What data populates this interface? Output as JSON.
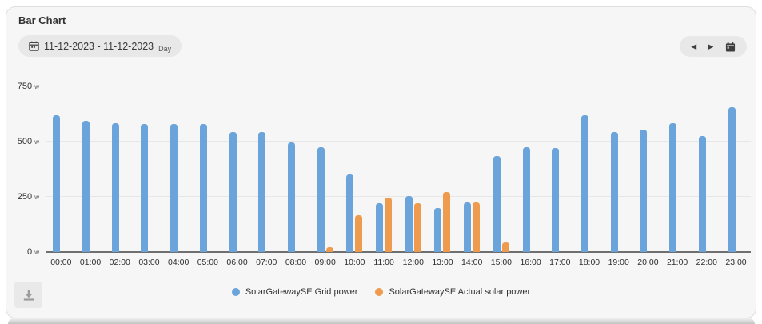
{
  "header": {
    "title": "Bar Chart"
  },
  "toolbar": {
    "date_range": "11-12-2023 - 11-12-2023",
    "granularity": "Day"
  },
  "icons": {
    "prev": "◀",
    "next": "▶",
    "calendar": "calendar-icon",
    "download": "download-icon"
  },
  "chart_data": {
    "type": "bar",
    "title": "Bar Chart",
    "categories": [
      "00:00",
      "01:00",
      "02:00",
      "03:00",
      "04:00",
      "05:00",
      "06:00",
      "07:00",
      "08:00",
      "09:00",
      "10:00",
      "11:00",
      "12:00",
      "13:00",
      "14:00",
      "15:00",
      "16:00",
      "17:00",
      "18:00",
      "19:00",
      "20:00",
      "21:00",
      "22:00",
      "23:00"
    ],
    "series": [
      {
        "name": "SolarGatewaySE Grid power",
        "color": "#6ba3db",
        "values": [
          620,
          595,
          585,
          580,
          580,
          580,
          545,
          545,
          495,
          475,
          350,
          220,
          255,
          200,
          225,
          435,
          475,
          470,
          620,
          545,
          555,
          585,
          525,
          655
        ]
      },
      {
        "name": "SolarGatewaySE Actual solar power",
        "color": "#ee9b4d",
        "values": [
          0,
          0,
          0,
          0,
          0,
          0,
          0,
          0,
          0,
          20,
          165,
          245,
          220,
          270,
          225,
          45,
          0,
          0,
          0,
          0,
          0,
          0,
          0,
          0
        ]
      }
    ],
    "unit": "w",
    "yticks": [
      0,
      250,
      500,
      750
    ],
    "ylim": [
      0,
      750
    ],
    "grid": true,
    "legend_position": "bottom"
  }
}
